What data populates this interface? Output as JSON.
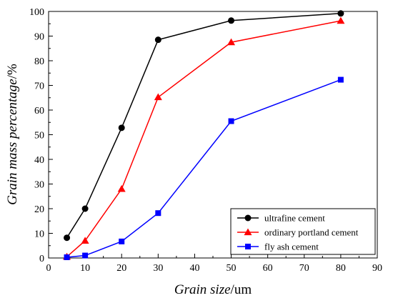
{
  "chart_data": {
    "type": "line",
    "xlabel_italic": "Grain size",
    "xlabel_unit": "/um",
    "ylabel_italic": "Grain mass percentage",
    "ylabel_unit": "/%",
    "xlim": [
      0,
      90
    ],
    "ylim": [
      0,
      100
    ],
    "xticks": [
      "0",
      "10",
      "20",
      "30",
      "40",
      "50",
      "60",
      "70",
      "80",
      "90"
    ],
    "yticks": [
      "0",
      "10",
      "20",
      "30",
      "40",
      "50",
      "60",
      "70",
      "80",
      "90",
      "100"
    ],
    "grid": false,
    "legend_position": "bottom-right",
    "series": [
      {
        "name": "ultrafine  cement",
        "color": "#000000",
        "marker": "circle",
        "points": [
          [
            5,
            8.2
          ],
          [
            10,
            20
          ],
          [
            20,
            52.8
          ],
          [
            30,
            88.5
          ],
          [
            50,
            96.3
          ],
          [
            80,
            99.2
          ]
        ]
      },
      {
        "name": "ordinary portland cement",
        "color": "#ff0000",
        "marker": "triangle",
        "points": [
          [
            5,
            0.5
          ],
          [
            10,
            7
          ],
          [
            20,
            28
          ],
          [
            30,
            65.2
          ],
          [
            50,
            87.5
          ],
          [
            80,
            96.2
          ]
        ]
      },
      {
        "name": "fly ash cement",
        "color": "#0000ff",
        "marker": "square",
        "points": [
          [
            5,
            0.3
          ],
          [
            10,
            1
          ],
          [
            20,
            6.7
          ],
          [
            30,
            18.2
          ],
          [
            50,
            55.5
          ],
          [
            80,
            72.3
          ]
        ]
      }
    ]
  }
}
